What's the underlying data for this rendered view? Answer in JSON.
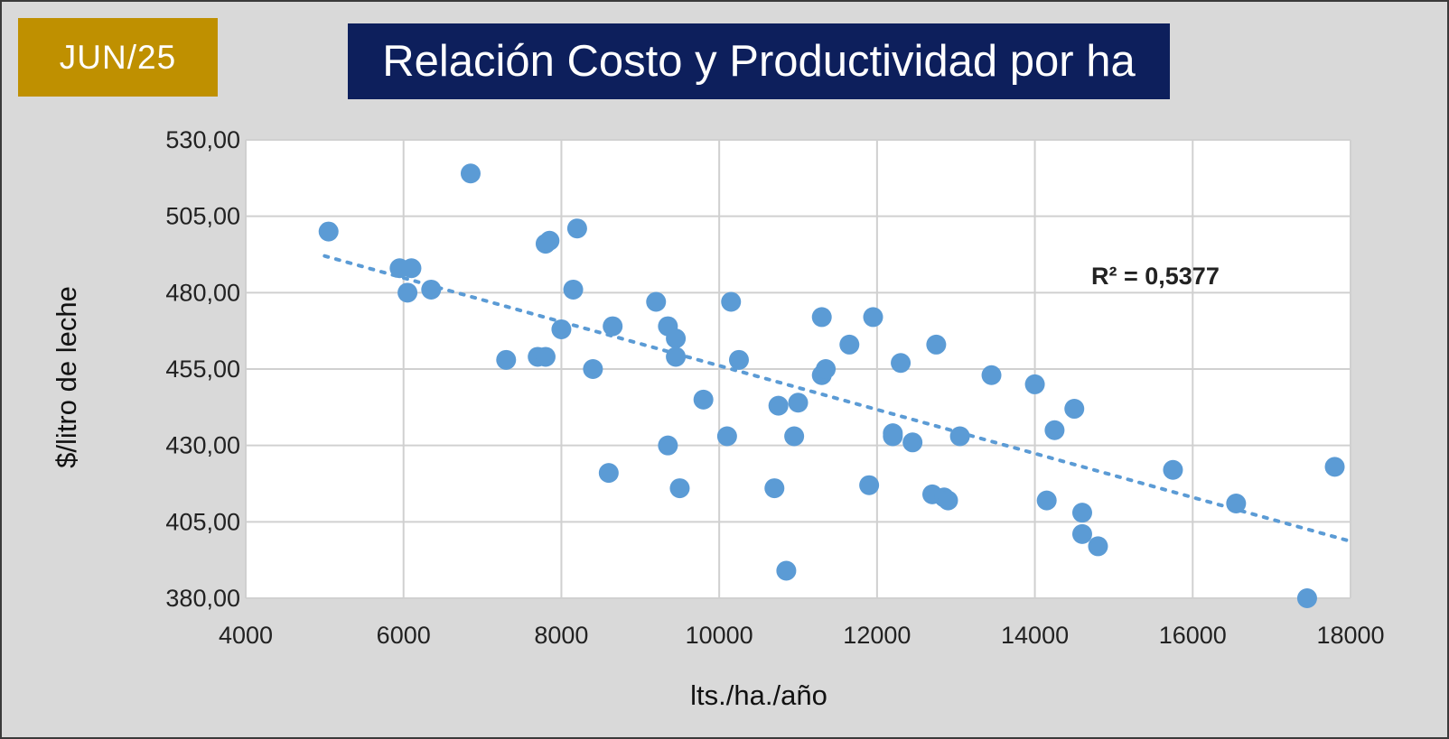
{
  "badge": "JUN/25",
  "title": "Relación Costo y Productividad por ha",
  "colors": {
    "badge": "#bf9000",
    "title_bg": "#0d1f5c",
    "points": "#5b9bd5",
    "trend": "#5b9bd5"
  },
  "chart_data": {
    "type": "scatter",
    "title": "Relación Costo y Productividad por ha",
    "xlabel": "lts./ha./año",
    "ylabel": "$/litro de leche",
    "xlim": [
      4000,
      18000
    ],
    "ylim": [
      380,
      530
    ],
    "x_ticks": [
      "4000",
      "6000",
      "8000",
      "10000",
      "12000",
      "14000",
      "16000",
      "18000"
    ],
    "y_ticks": [
      "380,00",
      "405,00",
      "430,00",
      "455,00",
      "480,00",
      "505,00",
      "530,00"
    ],
    "grid": true,
    "trendline": {
      "type": "linear",
      "from": [
        5000,
        492
      ],
      "to": [
        17950,
        399
      ],
      "r2_label": "R² = 0,5377"
    },
    "points": [
      [
        5050,
        500
      ],
      [
        6850,
        519
      ],
      [
        5950,
        488
      ],
      [
        6100,
        488
      ],
      [
        6050,
        480
      ],
      [
        6350,
        481
      ],
      [
        7300,
        458
      ],
      [
        7700,
        459
      ],
      [
        7800,
        459
      ],
      [
        7800,
        496
      ],
      [
        7850,
        497
      ],
      [
        8200,
        501
      ],
      [
        8150,
        481
      ],
      [
        8000,
        468
      ],
      [
        8400,
        455
      ],
      [
        8650,
        469
      ],
      [
        8600,
        421
      ],
      [
        9200,
        477
      ],
      [
        9350,
        469
      ],
      [
        9450,
        465
      ],
      [
        9450,
        459
      ],
      [
        9350,
        430
      ],
      [
        9500,
        416
      ],
      [
        9800,
        445
      ],
      [
        10100,
        433
      ],
      [
        10150,
        477
      ],
      [
        10250,
        458
      ],
      [
        10700,
        416
      ],
      [
        10750,
        443
      ],
      [
        10850,
        389
      ],
      [
        10950,
        433
      ],
      [
        11000,
        444
      ],
      [
        11300,
        453
      ],
      [
        11350,
        455
      ],
      [
        11300,
        472
      ],
      [
        11650,
        463
      ],
      [
        11900,
        417
      ],
      [
        11950,
        472
      ],
      [
        12200,
        434
      ],
      [
        12200,
        433
      ],
      [
        12300,
        457
      ],
      [
        12450,
        431
      ],
      [
        12700,
        414
      ],
      [
        12750,
        463
      ],
      [
        12850,
        413
      ],
      [
        12900,
        412
      ],
      [
        13050,
        433
      ],
      [
        13450,
        453
      ],
      [
        14000,
        450
      ],
      [
        14150,
        412
      ],
      [
        14250,
        435
      ],
      [
        14500,
        442
      ],
      [
        14600,
        408
      ],
      [
        14600,
        401
      ],
      [
        14800,
        397
      ],
      [
        15750,
        422
      ],
      [
        16550,
        411
      ],
      [
        17450,
        380
      ],
      [
        17800,
        423
      ]
    ]
  }
}
